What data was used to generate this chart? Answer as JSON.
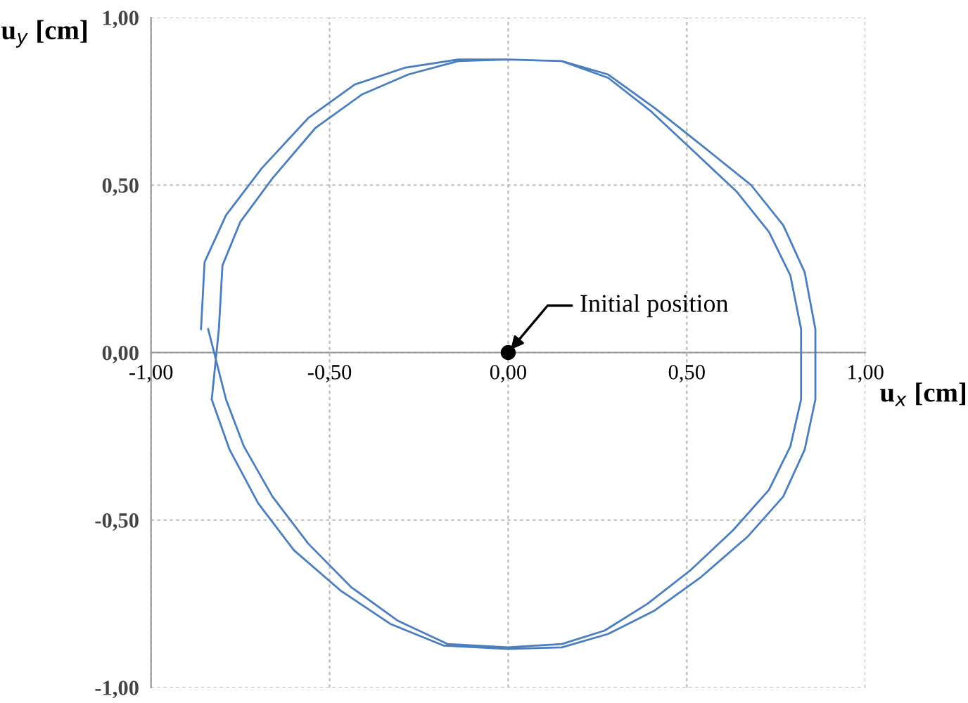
{
  "chart_data": {
    "type": "line",
    "xlabel": "u$_{x}$ [cm]",
    "ylabel": "u$_{y}$ [cm]",
    "xlim": [
      -1,
      1
    ],
    "ylim": [
      -1,
      1
    ],
    "xticks": [
      {
        "value": -1,
        "label": "-1,00"
      },
      {
        "value": -0.5,
        "label": "-0,50"
      },
      {
        "value": 0,
        "label": "0,00"
      },
      {
        "value": 0.5,
        "label": "0,50"
      },
      {
        "value": 1,
        "label": "1,00"
      }
    ],
    "yticks": [
      {
        "value": -1,
        "label": "-1,00"
      },
      {
        "value": -0.5,
        "label": "-0,50"
      },
      {
        "value": 0,
        "label": "0,00"
      },
      {
        "value": 0.5,
        "label": "0,50"
      },
      {
        "value": 1,
        "label": "1,00"
      }
    ],
    "grid": true,
    "marker": "none",
    "line_style": "solid",
    "series": [
      {
        "color": "#4a7ebf",
        "x": [
          -0.86,
          -0.85,
          -0.79,
          -0.69,
          -0.56,
          -0.43,
          -0.29,
          -0.14,
          0,
          0.15,
          0.28,
          0.41,
          0.54,
          0.68,
          0.77,
          0.83,
          0.86,
          0.86,
          0.83,
          0.77,
          0.67,
          0.54,
          0.41,
          0.28,
          0.15,
          0,
          -0.18,
          -0.33,
          -0.47,
          -0.6,
          -0.7,
          -0.78,
          -0.83,
          -0.81,
          -0.8,
          -0.75,
          -0.66,
          -0.54,
          -0.41,
          -0.28,
          -0.14,
          0,
          0.15,
          0.28,
          0.4,
          0.52,
          0.64,
          0.73,
          0.79,
          0.82,
          0.82,
          0.79,
          0.73,
          0.63,
          0.51,
          0.39,
          0.27,
          0.15,
          0,
          -0.17,
          -0.31,
          -0.44,
          -0.56,
          -0.66,
          -0.74,
          -0.79,
          -0.84
        ],
        "values": [
          0.07,
          0.27,
          0.41,
          0.55,
          0.7,
          0.8,
          0.85,
          0.875,
          0.875,
          0.87,
          0.83,
          0.73,
          0.62,
          0.5,
          0.38,
          0.24,
          0.07,
          -0.14,
          -0.29,
          -0.43,
          -0.55,
          -0.67,
          -0.77,
          -0.84,
          -0.88,
          -0.885,
          -0.875,
          -0.81,
          -0.71,
          -0.59,
          -0.45,
          -0.29,
          -0.14,
          0.07,
          0.26,
          0.39,
          0.52,
          0.67,
          0.77,
          0.83,
          0.87,
          0.875,
          0.87,
          0.82,
          0.72,
          0.6,
          0.48,
          0.36,
          0.23,
          0.07,
          -0.14,
          -0.28,
          -0.41,
          -0.53,
          -0.65,
          -0.75,
          -0.83,
          -0.87,
          -0.88,
          -0.87,
          -0.8,
          -0.7,
          -0.57,
          -0.43,
          -0.28,
          -0.14,
          0.07
        ]
      },
      {
        "type": "scatter",
        "color": "#000000",
        "x": [
          0
        ],
        "values": [
          0
        ],
        "marker": "circle"
      }
    ],
    "annotations": [
      {
        "text": "Initial position",
        "x": 0,
        "y": 0
      }
    ]
  }
}
